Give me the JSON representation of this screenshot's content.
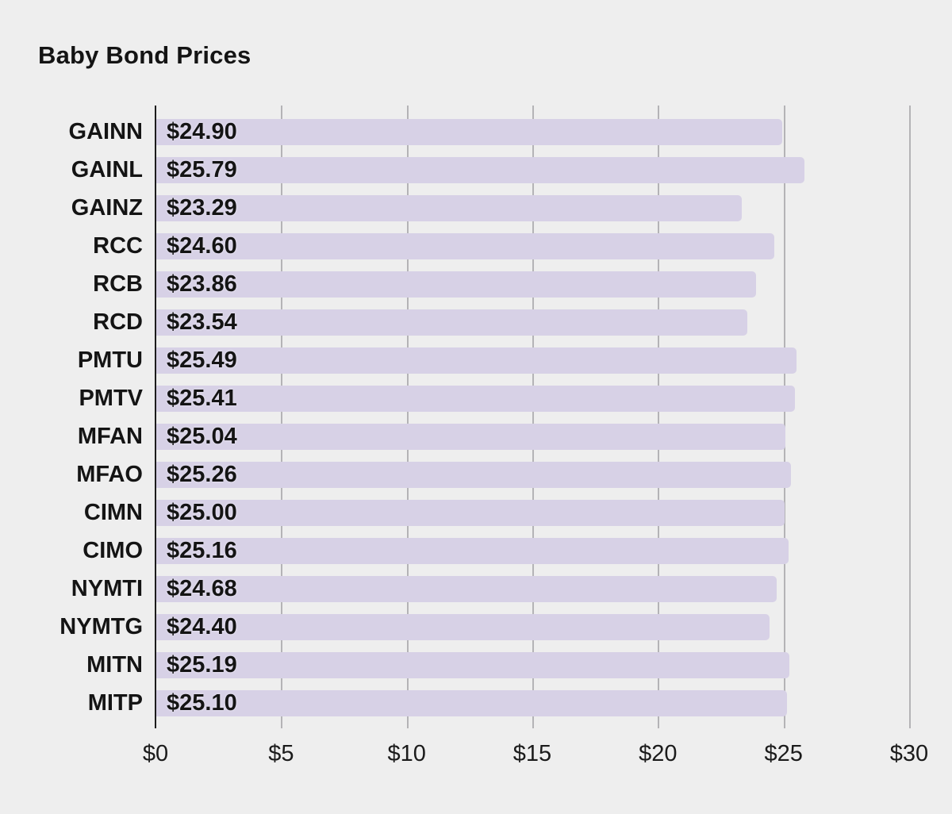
{
  "chart_data": {
    "type": "bar",
    "orientation": "horizontal",
    "title": "Baby Bond Prices",
    "categories": [
      "GAINN",
      "GAINL",
      "GAINZ",
      "RCC",
      "RCB",
      "RCD",
      "PMTU",
      "PMTV",
      "MFAN",
      "MFAO",
      "CIMN",
      "CIMO",
      "NYMTI",
      "NYMTG",
      "MITN",
      "MITP"
    ],
    "values": [
      24.9,
      25.79,
      23.29,
      24.6,
      23.86,
      23.54,
      25.49,
      25.41,
      25.04,
      25.26,
      25.0,
      25.16,
      24.68,
      24.4,
      25.19,
      25.1
    ],
    "value_labels": [
      "$24.90",
      "$25.79",
      "$23.29",
      "$24.60",
      "$23.86",
      "$23.54",
      "$25.49",
      "$25.41",
      "$25.04",
      "$25.26",
      "$25.00",
      "$25.16",
      "$24.68",
      "$24.40",
      "$25.19",
      "$25.10"
    ],
    "xlabel": "",
    "ylabel": "",
    "xlim": [
      0,
      30
    ],
    "x_tick_values": [
      0,
      5,
      10,
      15,
      20,
      25,
      30
    ],
    "x_tick_labels": [
      "$0",
      "$5",
      "$10",
      "$15",
      "$20",
      "$25",
      "$30"
    ],
    "grid": "vertical-only",
    "legend": "none",
    "value_label_position": "inside-start",
    "colors": {
      "bar": "#d7d1e6",
      "background": "#eeeeee",
      "gridline": "#b4b3b6",
      "axis_line": "#1c1c1c",
      "text": "#141414"
    }
  }
}
